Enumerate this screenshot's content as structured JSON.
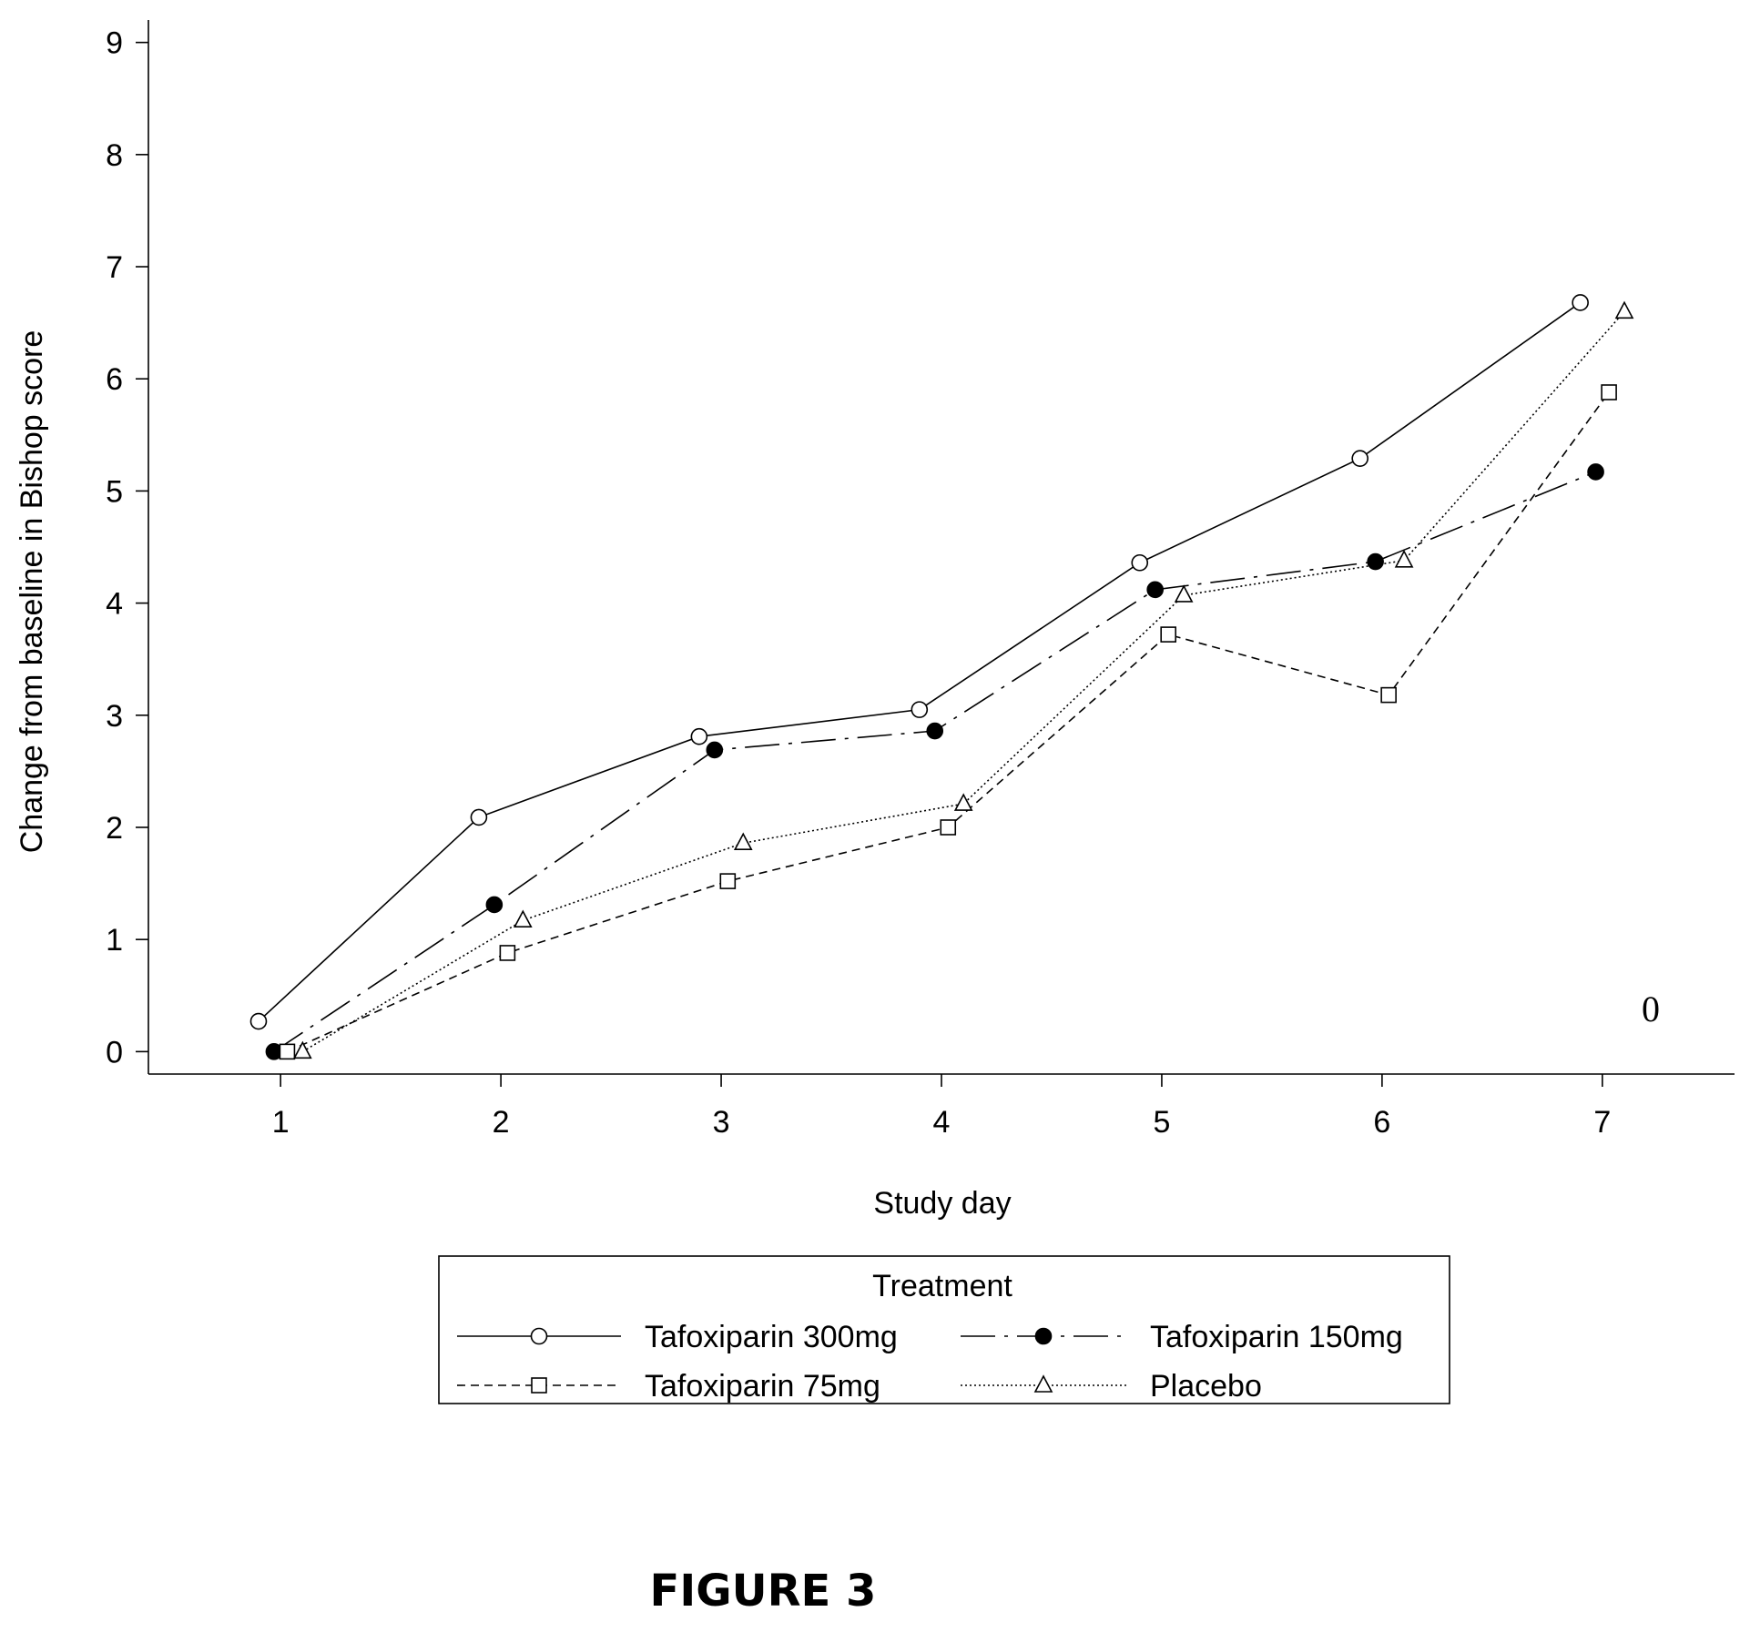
{
  "chart_data": {
    "type": "line",
    "xlabel": "Study day",
    "ylabel": "Change from baseline in Bishop score",
    "xlim": [
      0.4,
      7.6
    ],
    "ylim": [
      -0.2,
      9.2
    ],
    "x_ticks": [
      1,
      2,
      3,
      4,
      5,
      6,
      7
    ],
    "y_ticks": [
      0,
      1,
      2,
      3,
      4,
      5,
      6,
      7,
      8,
      9
    ],
    "legend": {
      "title": "Treatment",
      "placement": "bottom"
    },
    "annotation": "0",
    "series": [
      {
        "name": "Tafoxiparin 300mg",
        "line": "solid",
        "marker": "open-circle",
        "x": [
          0.9,
          1.9,
          2.9,
          3.9,
          4.9,
          5.9,
          6.9
        ],
        "y": [
          0.27,
          2.09,
          2.81,
          3.05,
          4.36,
          5.29,
          6.68
        ]
      },
      {
        "name": "Tafoxiparin 150mg",
        "line": "long-dash",
        "marker": "filled-circle",
        "x": [
          0.97,
          1.97,
          2.97,
          3.97,
          4.97,
          5.97,
          6.97
        ],
        "y": [
          0.0,
          1.31,
          2.69,
          2.86,
          4.12,
          4.37,
          5.17
        ]
      },
      {
        "name": "Tafoxiparin 75mg",
        "line": "short-dash",
        "marker": "open-square",
        "x": [
          1.03,
          2.03,
          3.03,
          4.03,
          5.03,
          6.03,
          7.03
        ],
        "y": [
          0.0,
          0.88,
          1.52,
          2.0,
          3.72,
          3.18,
          5.88
        ]
      },
      {
        "name": "Placebo",
        "line": "dotted",
        "marker": "open-triangle",
        "x": [
          1.1,
          2.1,
          3.1,
          4.1,
          5.1,
          6.1,
          7.1
        ],
        "y": [
          0.0,
          1.17,
          1.86,
          2.21,
          4.07,
          4.38,
          6.6
        ]
      }
    ]
  },
  "figure_caption": "FIGURE 3"
}
